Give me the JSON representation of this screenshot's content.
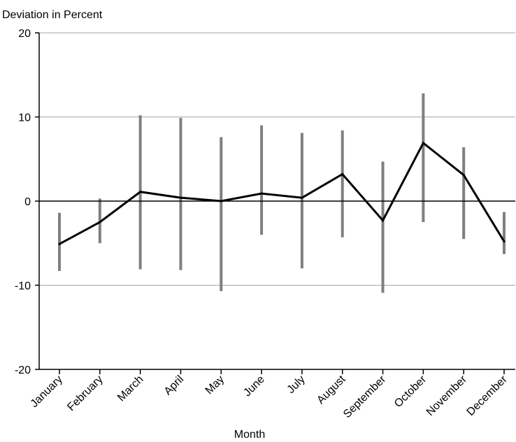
{
  "chart_data": {
    "type": "line",
    "title": "",
    "ylabel": "Deviation in Percent",
    "xlabel": "Month",
    "ylim": [
      -20,
      20
    ],
    "yticks": [
      -20,
      -10,
      0,
      10,
      20
    ],
    "grid": true,
    "categories": [
      "January",
      "February",
      "March",
      "April",
      "May",
      "June",
      "July",
      "August",
      "September",
      "October",
      "November",
      "December"
    ],
    "series": [
      {
        "values": [
          -5.1,
          -2.5,
          1.1,
          0.4,
          0.0,
          0.9,
          0.4,
          3.2,
          -2.3,
          6.9,
          3.1,
          -4.8
        ]
      }
    ],
    "ranges": [
      {
        "low": -8.3,
        "high": -1.4
      },
      {
        "low": -5.0,
        "high": 0.3
      },
      {
        "low": -8.1,
        "high": 10.2
      },
      {
        "low": -8.2,
        "high": 9.9
      },
      {
        "low": -10.7,
        "high": 7.6
      },
      {
        "low": -4.0,
        "high": 9.0
      },
      {
        "low": -8.0,
        "high": 8.1
      },
      {
        "low": -4.3,
        "high": 8.4
      },
      {
        "low": -10.9,
        "high": 4.7
      },
      {
        "low": -2.5,
        "high": 12.8
      },
      {
        "low": -4.5,
        "high": 6.4
      },
      {
        "low": -6.3,
        "high": -1.3
      }
    ],
    "colors": {
      "line": "#000000",
      "range": "#7f7f7f",
      "grid": "#a6a6a6",
      "axis": "#000000"
    }
  }
}
